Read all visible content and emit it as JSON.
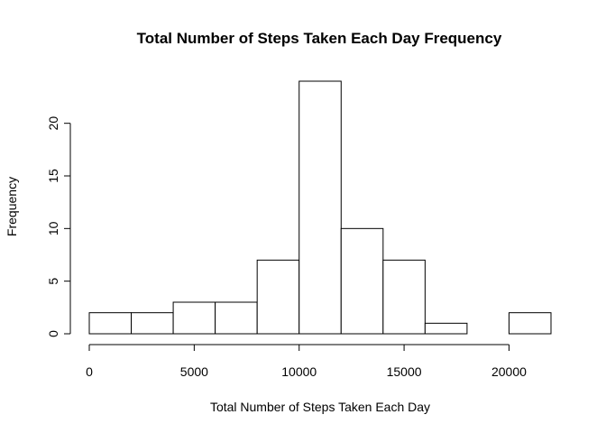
{
  "chart_data": {
    "type": "bar",
    "subtype": "histogram",
    "title": "Total Number of Steps Taken Each Day Frequency",
    "xlabel": "Total Number of Steps Taken Each Day",
    "ylabel": "Frequency",
    "bins": [
      {
        "start": 0,
        "end": 2000,
        "count": 2
      },
      {
        "start": 2000,
        "end": 4000,
        "count": 2
      },
      {
        "start": 4000,
        "end": 6000,
        "count": 3
      },
      {
        "start": 6000,
        "end": 8000,
        "count": 3
      },
      {
        "start": 8000,
        "end": 10000,
        "count": 7
      },
      {
        "start": 10000,
        "end": 12000,
        "count": 24
      },
      {
        "start": 12000,
        "end": 14000,
        "count": 10
      },
      {
        "start": 14000,
        "end": 16000,
        "count": 7
      },
      {
        "start": 16000,
        "end": 18000,
        "count": 1
      },
      {
        "start": 18000,
        "end": 20000,
        "count": 0
      },
      {
        "start": 20000,
        "end": 22000,
        "count": 2
      }
    ],
    "xlim": [
      0,
      22000
    ],
    "ylim": [
      0,
      24
    ],
    "xticks": [
      0,
      5000,
      10000,
      15000,
      20000
    ],
    "yticks": [
      0,
      5,
      10,
      15,
      20
    ],
    "bar_fill": "#ffffff",
    "bar_stroke": "#000000",
    "grid": false,
    "legend": false
  }
}
